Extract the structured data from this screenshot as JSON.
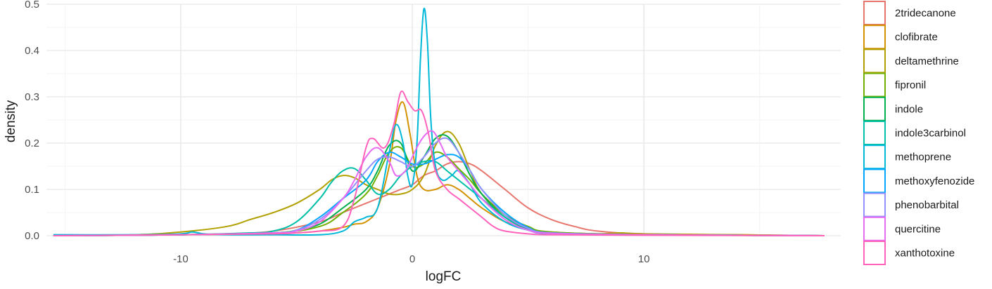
{
  "chart_data": {
    "type": "line",
    "xlabel": "logFC",
    "ylabel": "density",
    "xlim": [
      -15.8,
      18.5
    ],
    "ylim": [
      0,
      0.5
    ],
    "xticks": [
      -10,
      0,
      10
    ],
    "xtick_labels": [
      "-10",
      "0",
      "10"
    ],
    "yticks": [
      0.0,
      0.1,
      0.2,
      0.3,
      0.4,
      0.5
    ],
    "ytick_labels": [
      "0.0",
      "0.1",
      "0.2",
      "0.3",
      "0.4",
      "0.5"
    ],
    "grid": true,
    "legend_position": "right",
    "series": [
      {
        "name": "2tridecanone",
        "color": "#E7766E",
        "x": [
          -15.5,
          -12,
          -8,
          -6,
          -4,
          -3,
          -2,
          -1.5,
          -1,
          -0.5,
          0,
          0.5,
          1,
          1.5,
          2,
          2.5,
          3,
          4,
          5,
          6,
          7,
          8,
          10,
          14,
          17.8
        ],
        "y": [
          0,
          0.001,
          0.004,
          0.01,
          0.03,
          0.05,
          0.07,
          0.08,
          0.09,
          0.1,
          0.11,
          0.13,
          0.14,
          0.155,
          0.16,
          0.155,
          0.14,
          0.1,
          0.06,
          0.035,
          0.02,
          0.01,
          0.004,
          0.001,
          0
        ]
      },
      {
        "name": "clofibrate",
        "color": "#D39200",
        "x": [
          -15.5,
          -10,
          -7,
          -5,
          -4,
          -3,
          -2.5,
          -2,
          -1.5,
          -1,
          -0.7,
          -0.4,
          -0.1,
          0.2,
          0.5,
          1,
          1.5,
          2,
          2.5,
          3,
          4,
          5,
          6,
          8,
          10,
          14,
          17.8
        ],
        "y": [
          0,
          0.002,
          0.004,
          0.006,
          0.01,
          0.018,
          0.025,
          0.03,
          0.06,
          0.15,
          0.25,
          0.288,
          0.22,
          0.13,
          0.1,
          0.1,
          0.11,
          0.1,
          0.08,
          0.06,
          0.03,
          0.015,
          0.008,
          0.004,
          0.003,
          0.002,
          0
        ]
      },
      {
        "name": "deltamethrine",
        "color": "#B2A000",
        "x": [
          -15.5,
          -12,
          -10,
          -8,
          -7,
          -6,
          -5,
          -4,
          -3.5,
          -3,
          -2.5,
          -2,
          -1.5,
          -1,
          -0.5,
          0,
          0.5,
          1,
          1.5,
          2,
          2.5,
          3,
          4,
          5,
          6,
          8,
          9,
          10,
          14,
          17.8
        ],
        "y": [
          0,
          0.002,
          0.008,
          0.02,
          0.035,
          0.05,
          0.07,
          0.1,
          0.12,
          0.13,
          0.125,
          0.11,
          0.1,
          0.09,
          0.09,
          0.1,
          0.13,
          0.195,
          0.225,
          0.2,
          0.14,
          0.09,
          0.04,
          0.015,
          0.006,
          0.004,
          0.006,
          0.004,
          0.002,
          0
        ]
      },
      {
        "name": "fipronil",
        "color": "#72B000",
        "x": [
          -15.5,
          -10,
          -6,
          -4,
          -3,
          -2,
          -1.5,
          -1,
          -0.5,
          0,
          0.5,
          1,
          1.5,
          2,
          2.5,
          3,
          4,
          5,
          6,
          10,
          17.8
        ],
        "y": [
          0,
          0.002,
          0.006,
          0.02,
          0.05,
          0.09,
          0.13,
          0.18,
          0.19,
          0.15,
          0.155,
          0.18,
          0.17,
          0.145,
          0.12,
          0.09,
          0.045,
          0.02,
          0.008,
          0.002,
          0
        ]
      },
      {
        "name": "indole",
        "color": "#00B050",
        "x": [
          -15.5,
          -10,
          -6,
          -5,
          -4,
          -3,
          -2,
          -1.5,
          -1,
          -0.5,
          0,
          0.5,
          1,
          1.5,
          2,
          2.5,
          3,
          4,
          5,
          6,
          10,
          17.8
        ],
        "y": [
          0,
          0.002,
          0.006,
          0.012,
          0.025,
          0.06,
          0.1,
          0.14,
          0.195,
          0.2,
          0.14,
          0.17,
          0.21,
          0.215,
          0.18,
          0.13,
          0.09,
          0.04,
          0.015,
          0.006,
          0.002,
          0
        ]
      },
      {
        "name": "indole3carbinol",
        "color": "#00BFA8",
        "x": [
          -15.5,
          -10,
          -7,
          -6,
          -5,
          -4,
          -3.5,
          -3,
          -2.5,
          -2,
          -1.5,
          -1,
          -0.5,
          0,
          0.5,
          1,
          1.5,
          2,
          2.5,
          3,
          4,
          5,
          6,
          10,
          17.8
        ],
        "y": [
          0,
          0.002,
          0.006,
          0.01,
          0.03,
          0.08,
          0.115,
          0.14,
          0.145,
          0.12,
          0.09,
          0.1,
          0.13,
          0.15,
          0.16,
          0.16,
          0.14,
          0.12,
          0.1,
          0.08,
          0.04,
          0.015,
          0.006,
          0.002,
          0
        ]
      },
      {
        "name": "methoprene",
        "color": "#00B8D8",
        "x": [
          -15.5,
          -15,
          -12,
          -10,
          -9.5,
          -9,
          -8,
          -6,
          -4,
          -3,
          -2.5,
          -2,
          -1.5,
          -1,
          -0.7,
          -0.4,
          -0.2,
          0,
          0.2,
          0.35,
          0.5,
          0.65,
          0.8,
          1,
          1.3,
          1.7,
          2,
          2.5,
          3,
          4,
          5,
          6,
          10,
          17.8
        ],
        "y": [
          0.002,
          0.002,
          0.002,
          0.004,
          0.008,
          0.004,
          0.002,
          0.002,
          0.002,
          0.01,
          0.03,
          0.04,
          0.06,
          0.18,
          0.24,
          0.2,
          0.13,
          0.11,
          0.2,
          0.38,
          0.49,
          0.42,
          0.25,
          0.15,
          0.12,
          0.13,
          0.14,
          0.11,
          0.07,
          0.03,
          0.012,
          0.004,
          0.002,
          0
        ]
      },
      {
        "name": "methoxyfenozide",
        "color": "#00A6FF",
        "x": [
          -15.5,
          -10,
          -6,
          -5,
          -4,
          -3,
          -2,
          -1.5,
          -1,
          -0.5,
          0,
          0.5,
          1,
          1.5,
          2,
          2.5,
          3,
          4,
          5,
          6,
          10,
          17.8
        ],
        "y": [
          0,
          0.002,
          0.006,
          0.012,
          0.04,
          0.08,
          0.12,
          0.16,
          0.18,
          0.17,
          0.155,
          0.155,
          0.165,
          0.175,
          0.17,
          0.14,
          0.1,
          0.05,
          0.018,
          0.006,
          0.002,
          0
        ]
      },
      {
        "name": "phenobarbital",
        "color": "#9590FF",
        "x": [
          -15.5,
          -10,
          -6,
          -5,
          -4,
          -3,
          -2,
          -1.5,
          -1,
          -0.5,
          0,
          0.5,
          1,
          1.5,
          2,
          2.5,
          3,
          4,
          5,
          6,
          10,
          17.8
        ],
        "y": [
          0,
          0.002,
          0.006,
          0.012,
          0.035,
          0.08,
          0.14,
          0.165,
          0.17,
          0.16,
          0.15,
          0.17,
          0.2,
          0.21,
          0.18,
          0.14,
          0.1,
          0.045,
          0.016,
          0.006,
          0.002,
          0
        ]
      },
      {
        "name": "quercitine",
        "color": "#E76BF3",
        "x": [
          -15.5,
          -10,
          -6,
          -5,
          -4,
          -3,
          -2.5,
          -2,
          -1.5,
          -1,
          -0.7,
          -0.3,
          0,
          0.3,
          0.6,
          0.9,
          1.2,
          1.5,
          2,
          2.5,
          3,
          4,
          5,
          6,
          10,
          17.8
        ],
        "y": [
          0,
          0.002,
          0.006,
          0.01,
          0.03,
          0.08,
          0.12,
          0.17,
          0.19,
          0.16,
          0.13,
          0.14,
          0.17,
          0.2,
          0.22,
          0.225,
          0.2,
          0.17,
          0.14,
          0.11,
          0.08,
          0.035,
          0.012,
          0.005,
          0.002,
          0
        ]
      },
      {
        "name": "xanthotoxine",
        "color": "#FF62BC",
        "x": [
          -15.5,
          -10,
          -6,
          -5,
          -4,
          -3,
          -2.5,
          -2,
          -1.7,
          -1.2,
          -0.8,
          -0.5,
          -0.2,
          0.1,
          0.4,
          0.7,
          1,
          1.5,
          2,
          2.5,
          3,
          3.5,
          4,
          5,
          6,
          10,
          17.8
        ],
        "y": [
          0,
          0.002,
          0.004,
          0.006,
          0.01,
          0.02,
          0.08,
          0.19,
          0.21,
          0.19,
          0.24,
          0.31,
          0.29,
          0.27,
          0.27,
          0.22,
          0.14,
          0.1,
          0.08,
          0.06,
          0.04,
          0.02,
          0.01,
          0.004,
          0.002,
          0.001,
          0
        ]
      }
    ]
  }
}
